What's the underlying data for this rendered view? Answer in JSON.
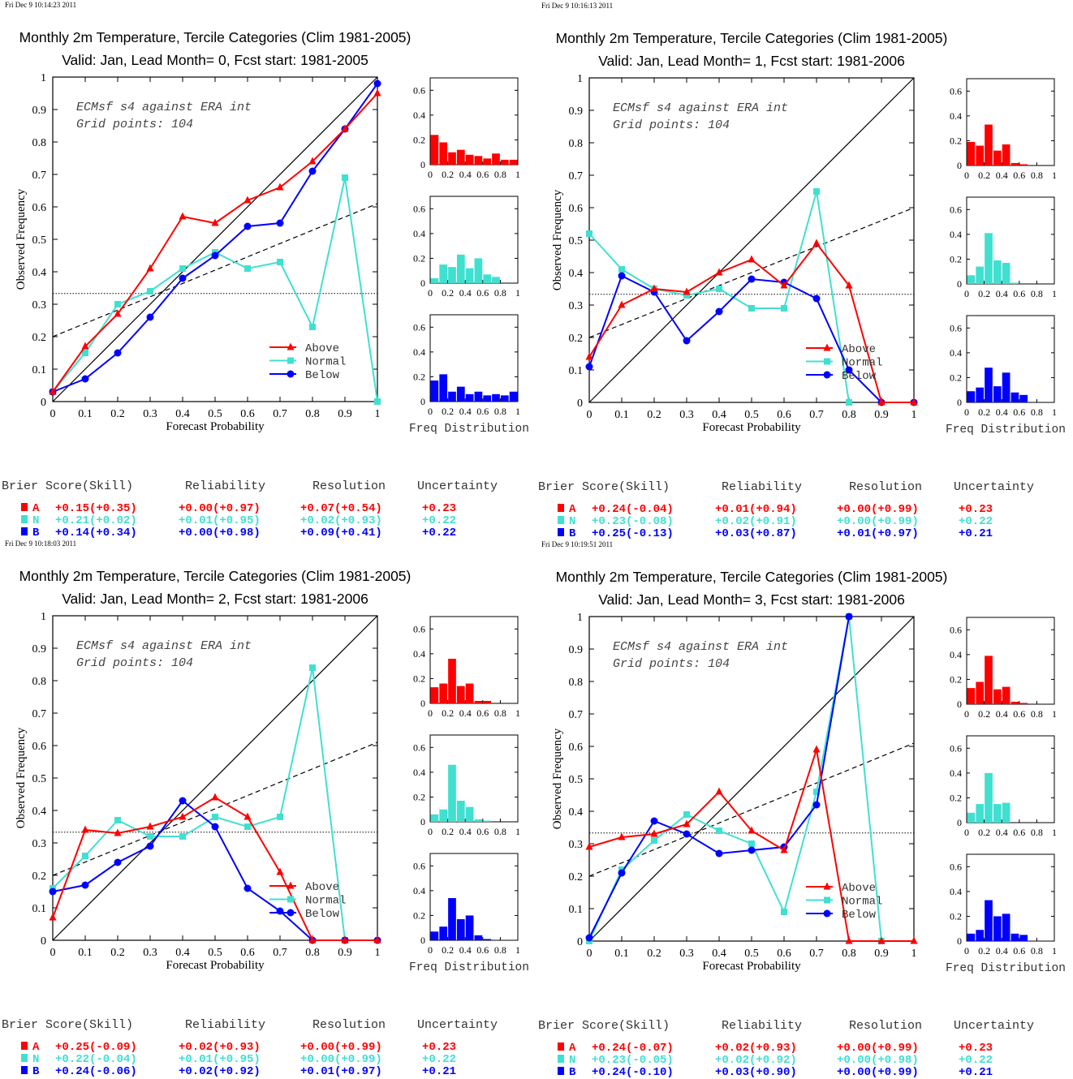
{
  "colors": {
    "above": "#ff0000",
    "normal": "#40e0d0",
    "below": "#0000ff",
    "axis": "#000000"
  },
  "labels": {
    "xlabel": "Forecast Probability",
    "ylabel": "Observed Frequency",
    "freq_label": "Freq Distribution",
    "score_headers": [
      "Brier Score(Skill)",
      "Reliability",
      "Resolution",
      "Uncertainty"
    ],
    "legend": [
      "Above",
      "Normal",
      "Below"
    ],
    "score_codes": [
      "A",
      "N",
      "B"
    ]
  },
  "panels": [
    {
      "timestamp": "Fri Dec  9 10:14:23 2011",
      "title": "Monthly 2m Temperature, Tercile Categories (Clim 1981-2005)",
      "subtitle": "Valid: Jan, Lead Month= 0, Fcst start: 1981-2005",
      "annotation_1": "ECMsf s4 against ERA int",
      "annotation_2": "Grid points:  104",
      "scores": {
        "A": [
          "+0.15(+0.35)",
          "+0.00(+0.97)",
          "+0.07(+0.54)",
          "+0.23"
        ],
        "N": [
          "+0.21(+0.02)",
          "+0.01(+0.95)",
          "+0.02(+0.93)",
          "+0.22"
        ],
        "B": [
          "+0.14(+0.34)",
          "+0.00(+0.98)",
          "+0.09(+0.41)",
          "+0.22"
        ]
      }
    },
    {
      "timestamp": "Fri Dec  9 10:16:13 2011",
      "title": "Monthly 2m Temperature, Tercile Categories (Clim 1981-2005)",
      "subtitle": "Valid: Jan, Lead Month= 1, Fcst start: 1981-2006",
      "annotation_1": "ECMsf s4 against ERA int",
      "annotation_2": "Grid points:  104",
      "scores": {
        "A": [
          "+0.24(-0.04)",
          "+0.01(+0.94)",
          "+0.00(+0.99)",
          "+0.23"
        ],
        "N": [
          "+0.23(-0.08)",
          "+0.02(+0.91)",
          "+0.00(+0.99)",
          "+0.22"
        ],
        "B": [
          "+0.25(-0.13)",
          "+0.03(+0.87)",
          "+0.01(+0.97)",
          "+0.21"
        ]
      }
    },
    {
      "timestamp": "Fri Dec  9 10:18:03 2011",
      "title": "Monthly 2m Temperature, Tercile Categories (Clim 1981-2005)",
      "subtitle": "Valid: Jan, Lead Month= 2, Fcst start: 1981-2006",
      "annotation_1": "ECMsf s4 against ERA int",
      "annotation_2": "Grid points:  104",
      "scores": {
        "A": [
          "+0.25(-0.09)",
          "+0.02(+0.93)",
          "+0.00(+0.99)",
          "+0.23"
        ],
        "N": [
          "+0.22(-0.04)",
          "+0.01(+0.95)",
          "+0.00(+0.99)",
          "+0.22"
        ],
        "B": [
          "+0.24(-0.06)",
          "+0.02(+0.92)",
          "+0.01(+0.97)",
          "+0.21"
        ]
      }
    },
    {
      "timestamp": "Fri Dec  9 10:19:51 2011",
      "title": "Monthly 2m Temperature, Tercile Categories (Clim 1981-2005)",
      "subtitle": "Valid: Jan, Lead Month= 3, Fcst start: 1981-2006",
      "annotation_1": "ECMsf s4 against ERA int",
      "annotation_2": "Grid points:  104",
      "scores": {
        "A": [
          "+0.24(-0.07)",
          "+0.02(+0.93)",
          "+0.00(+0.99)",
          "+0.23"
        ],
        "N": [
          "+0.23(-0.05)",
          "+0.02(+0.92)",
          "+0.00(+0.98)",
          "+0.22"
        ],
        "B": [
          "+0.24(-0.10)",
          "+0.03(+0.90)",
          "+0.00(+0.99)",
          "+0.21"
        ]
      }
    }
  ],
  "chart_data": [
    {
      "type": "line",
      "xlim": [
        0,
        1
      ],
      "ylim": [
        0,
        1
      ],
      "x_ticks": [
        "0",
        "0.1",
        "0.2",
        "0.3",
        "0.4",
        "0.5",
        "0.6",
        "0.7",
        "0.8",
        "0.9",
        "1"
      ],
      "y_ticks": [
        "0",
        "0.1",
        "0.2",
        "0.3",
        "0.4",
        "0.5",
        "0.6",
        "0.7",
        "0.8",
        "0.9",
        "1"
      ],
      "climatology_y": 0.333,
      "no_skill_line": [
        [
          0,
          0.2
        ],
        [
          1,
          0.61
        ]
      ],
      "series": [
        {
          "name": "Above",
          "marker": "triangle",
          "x": [
            0,
            0.1,
            0.2,
            0.3,
            0.4,
            0.5,
            0.6,
            0.7,
            0.8,
            0.9,
            1
          ],
          "y": [
            0.03,
            0.17,
            0.27,
            0.41,
            0.57,
            0.55,
            0.62,
            0.66,
            0.74,
            0.84,
            0.95
          ]
        },
        {
          "name": "Normal",
          "marker": "square",
          "x": [
            0,
            0.1,
            0.2,
            0.3,
            0.4,
            0.5,
            0.6,
            0.7,
            0.8,
            0.9,
            1
          ],
          "y": [
            0.03,
            0.15,
            0.3,
            0.34,
            0.41,
            0.46,
            0.41,
            0.43,
            0.23,
            0.69,
            0.0
          ]
        },
        {
          "name": "Below",
          "marker": "circle",
          "x": [
            0,
            0.1,
            0.2,
            0.3,
            0.4,
            0.5,
            0.6,
            0.7,
            0.8,
            0.9,
            1
          ],
          "y": [
            0.03,
            0.07,
            0.15,
            0.26,
            0.38,
            0.45,
            0.54,
            0.55,
            0.71,
            0.84,
            0.98
          ]
        }
      ],
      "freq_hist": {
        "ylim": [
          0,
          0.7
        ],
        "y_ticks": [
          "0",
          "0.2",
          "0.4",
          "0.6"
        ],
        "x_ticks": [
          "0",
          "0.2",
          "0.4",
          "0.6",
          "0.8",
          "1"
        ],
        "bin_width": 0.09,
        "above": [
          0.24,
          0.18,
          0.1,
          0.12,
          0.08,
          0.07,
          0.05,
          0.09,
          0.04,
          0.04
        ],
        "normal": [
          0.04,
          0.15,
          0.13,
          0.23,
          0.12,
          0.2,
          0.07,
          0.05,
          0.0,
          0.0
        ],
        "below": [
          0.17,
          0.22,
          0.08,
          0.12,
          0.06,
          0.08,
          0.05,
          0.06,
          0.05,
          0.08
        ]
      }
    },
    {
      "type": "line",
      "xlim": [
        0,
        1
      ],
      "ylim": [
        0,
        1
      ],
      "x_ticks": [
        "0",
        "0.1",
        "0.2",
        "0.3",
        "0.4",
        "0.5",
        "0.6",
        "0.7",
        "0.8",
        "0.9",
        "1"
      ],
      "y_ticks": [
        "0",
        "0.1",
        "0.2",
        "0.3",
        "0.4",
        "0.5",
        "0.6",
        "0.7",
        "0.8",
        "0.9",
        "1"
      ],
      "climatology_y": 0.333,
      "no_skill_line": [
        [
          0,
          0.2
        ],
        [
          1,
          0.6
        ]
      ],
      "series": [
        {
          "name": "Above",
          "marker": "triangle",
          "x": [
            0,
            0.1,
            0.2,
            0.3,
            0.4,
            0.5,
            0.6,
            0.7,
            0.8,
            0.9,
            1
          ],
          "y": [
            0.14,
            0.3,
            0.35,
            0.34,
            0.4,
            0.44,
            0.36,
            0.49,
            0.36,
            0.0,
            0.0
          ]
        },
        {
          "name": "Normal",
          "marker": "square",
          "x": [
            0,
            0.1,
            0.2,
            0.3,
            0.4,
            0.5,
            0.6,
            0.7,
            0.8
          ],
          "y": [
            0.52,
            0.41,
            0.35,
            0.33,
            0.35,
            0.29,
            0.29,
            0.65,
            0.0
          ]
        },
        {
          "name": "Below",
          "marker": "circle",
          "x": [
            0,
            0.1,
            0.2,
            0.3,
            0.4,
            0.5,
            0.6,
            0.7,
            0.8,
            0.9,
            1
          ],
          "y": [
            0.11,
            0.39,
            0.34,
            0.19,
            0.28,
            0.38,
            0.37,
            0.32,
            0.1,
            0.0,
            0.0
          ]
        }
      ],
      "freq_hist": {
        "ylim": [
          0,
          0.7
        ],
        "y_ticks": [
          "0",
          "0.2",
          "0.4",
          "0.6"
        ],
        "x_ticks": [
          "0",
          "0.2",
          "0.4",
          "0.6",
          "0.8",
          "1"
        ],
        "bin_width": 0.09,
        "above": [
          0.19,
          0.16,
          0.33,
          0.12,
          0.17,
          0.02,
          0.01,
          0.0,
          0.0,
          0.0
        ],
        "normal": [
          0.07,
          0.14,
          0.41,
          0.19,
          0.17,
          0.01,
          0.0,
          0.0,
          0.0,
          0.0
        ],
        "below": [
          0.09,
          0.12,
          0.28,
          0.13,
          0.24,
          0.08,
          0.06,
          0.0,
          0.0,
          0.0
        ]
      }
    },
    {
      "type": "line",
      "xlim": [
        0,
        1
      ],
      "ylim": [
        0,
        1
      ],
      "x_ticks": [
        "0",
        "0.1",
        "0.2",
        "0.3",
        "0.4",
        "0.5",
        "0.6",
        "0.7",
        "0.8",
        "0.9",
        "1"
      ],
      "y_ticks": [
        "0",
        "0.1",
        "0.2",
        "0.3",
        "0.4",
        "0.5",
        "0.6",
        "0.7",
        "0.8",
        "0.9",
        "1"
      ],
      "climatology_y": 0.333,
      "no_skill_line": [
        [
          0,
          0.2
        ],
        [
          1,
          0.61
        ]
      ],
      "series": [
        {
          "name": "Above",
          "marker": "triangle",
          "x": [
            0,
            0.1,
            0.2,
            0.3,
            0.4,
            0.5,
            0.6,
            0.7,
            0.8,
            0.9,
            1
          ],
          "y": [
            0.07,
            0.34,
            0.33,
            0.35,
            0.38,
            0.44,
            0.38,
            0.21,
            0.0,
            0.0,
            0.0
          ]
        },
        {
          "name": "Normal",
          "marker": "square",
          "x": [
            0,
            0.1,
            0.2,
            0.3,
            0.4,
            0.5,
            0.6,
            0.7,
            0.8,
            0.9
          ],
          "y": [
            0.16,
            0.26,
            0.37,
            0.32,
            0.32,
            0.38,
            0.35,
            0.38,
            0.84,
            0.0
          ]
        },
        {
          "name": "Below",
          "marker": "circle",
          "x": [
            0,
            0.1,
            0.2,
            0.3,
            0.4,
            0.5,
            0.6,
            0.7,
            0.8,
            0.9,
            1
          ],
          "y": [
            0.15,
            0.17,
            0.24,
            0.29,
            0.43,
            0.35,
            0.16,
            0.09,
            0.0,
            0.0,
            0.0
          ]
        }
      ],
      "freq_hist": {
        "ylim": [
          0,
          0.7
        ],
        "y_ticks": [
          "0",
          "0.2",
          "0.4",
          "0.6"
        ],
        "x_ticks": [
          "0",
          "0.2",
          "0.4",
          "0.6",
          "0.8",
          "1"
        ],
        "bin_width": 0.09,
        "above": [
          0.13,
          0.16,
          0.36,
          0.14,
          0.16,
          0.02,
          0.02,
          0.0,
          0.0,
          0.0
        ],
        "normal": [
          0.06,
          0.1,
          0.46,
          0.17,
          0.12,
          0.02,
          0.01,
          0.0,
          0.0,
          0.0
        ],
        "below": [
          0.07,
          0.11,
          0.34,
          0.17,
          0.2,
          0.04,
          0.01,
          0.0,
          0.0,
          0.0
        ]
      }
    },
    {
      "type": "line",
      "xlim": [
        0,
        1
      ],
      "ylim": [
        0,
        1
      ],
      "x_ticks": [
        "0",
        "0.1",
        "0.2",
        "0.3",
        "0.4",
        "0.5",
        "0.6",
        "0.7",
        "0.8",
        "0.9",
        "1"
      ],
      "y_ticks": [
        "0",
        "0.1",
        "0.2",
        "0.3",
        "0.4",
        "0.5",
        "0.6",
        "0.7",
        "0.8",
        "0.9",
        "1"
      ],
      "climatology_y": 0.333,
      "no_skill_line": [
        [
          0,
          0.2
        ],
        [
          1,
          0.61
        ]
      ],
      "series": [
        {
          "name": "Above",
          "marker": "triangle",
          "x": [
            0,
            0.1,
            0.2,
            0.3,
            0.4,
            0.5,
            0.6,
            0.7,
            0.8,
            0.9,
            1
          ],
          "y": [
            0.29,
            0.32,
            0.33,
            0.36,
            0.46,
            0.34,
            0.28,
            0.59,
            0.0,
            0.0,
            0.0
          ]
        },
        {
          "name": "Normal",
          "marker": "square",
          "x": [
            0,
            0.1,
            0.2,
            0.3,
            0.4,
            0.5,
            0.6,
            0.7,
            0.8,
            0.9
          ],
          "y": [
            0.0,
            0.22,
            0.31,
            0.39,
            0.34,
            0.3,
            0.09,
            0.46,
            1.0,
            0.0
          ]
        },
        {
          "name": "Below",
          "marker": "circle",
          "x": [
            0,
            0.1,
            0.2,
            0.3,
            0.4,
            0.5,
            0.6,
            0.7,
            0.8
          ],
          "y": [
            0.01,
            0.21,
            0.37,
            0.33,
            0.27,
            0.28,
            0.29,
            0.42,
            1.0
          ]
        }
      ],
      "freq_hist": {
        "ylim": [
          0,
          0.7
        ],
        "y_ticks": [
          "0",
          "0.2",
          "0.4",
          "0.6"
        ],
        "x_ticks": [
          "0",
          "0.2",
          "0.4",
          "0.6",
          "0.8",
          "1"
        ],
        "bin_width": 0.09,
        "above": [
          0.13,
          0.18,
          0.39,
          0.12,
          0.14,
          0.02,
          0.01,
          0.0,
          0.0,
          0.0
        ],
        "normal": [
          0.08,
          0.15,
          0.4,
          0.15,
          0.16,
          0.0,
          0.0,
          0.0,
          0.0,
          0.0
        ],
        "below": [
          0.06,
          0.09,
          0.33,
          0.2,
          0.22,
          0.06,
          0.05,
          0.0,
          0.0,
          0.0
        ]
      }
    }
  ]
}
